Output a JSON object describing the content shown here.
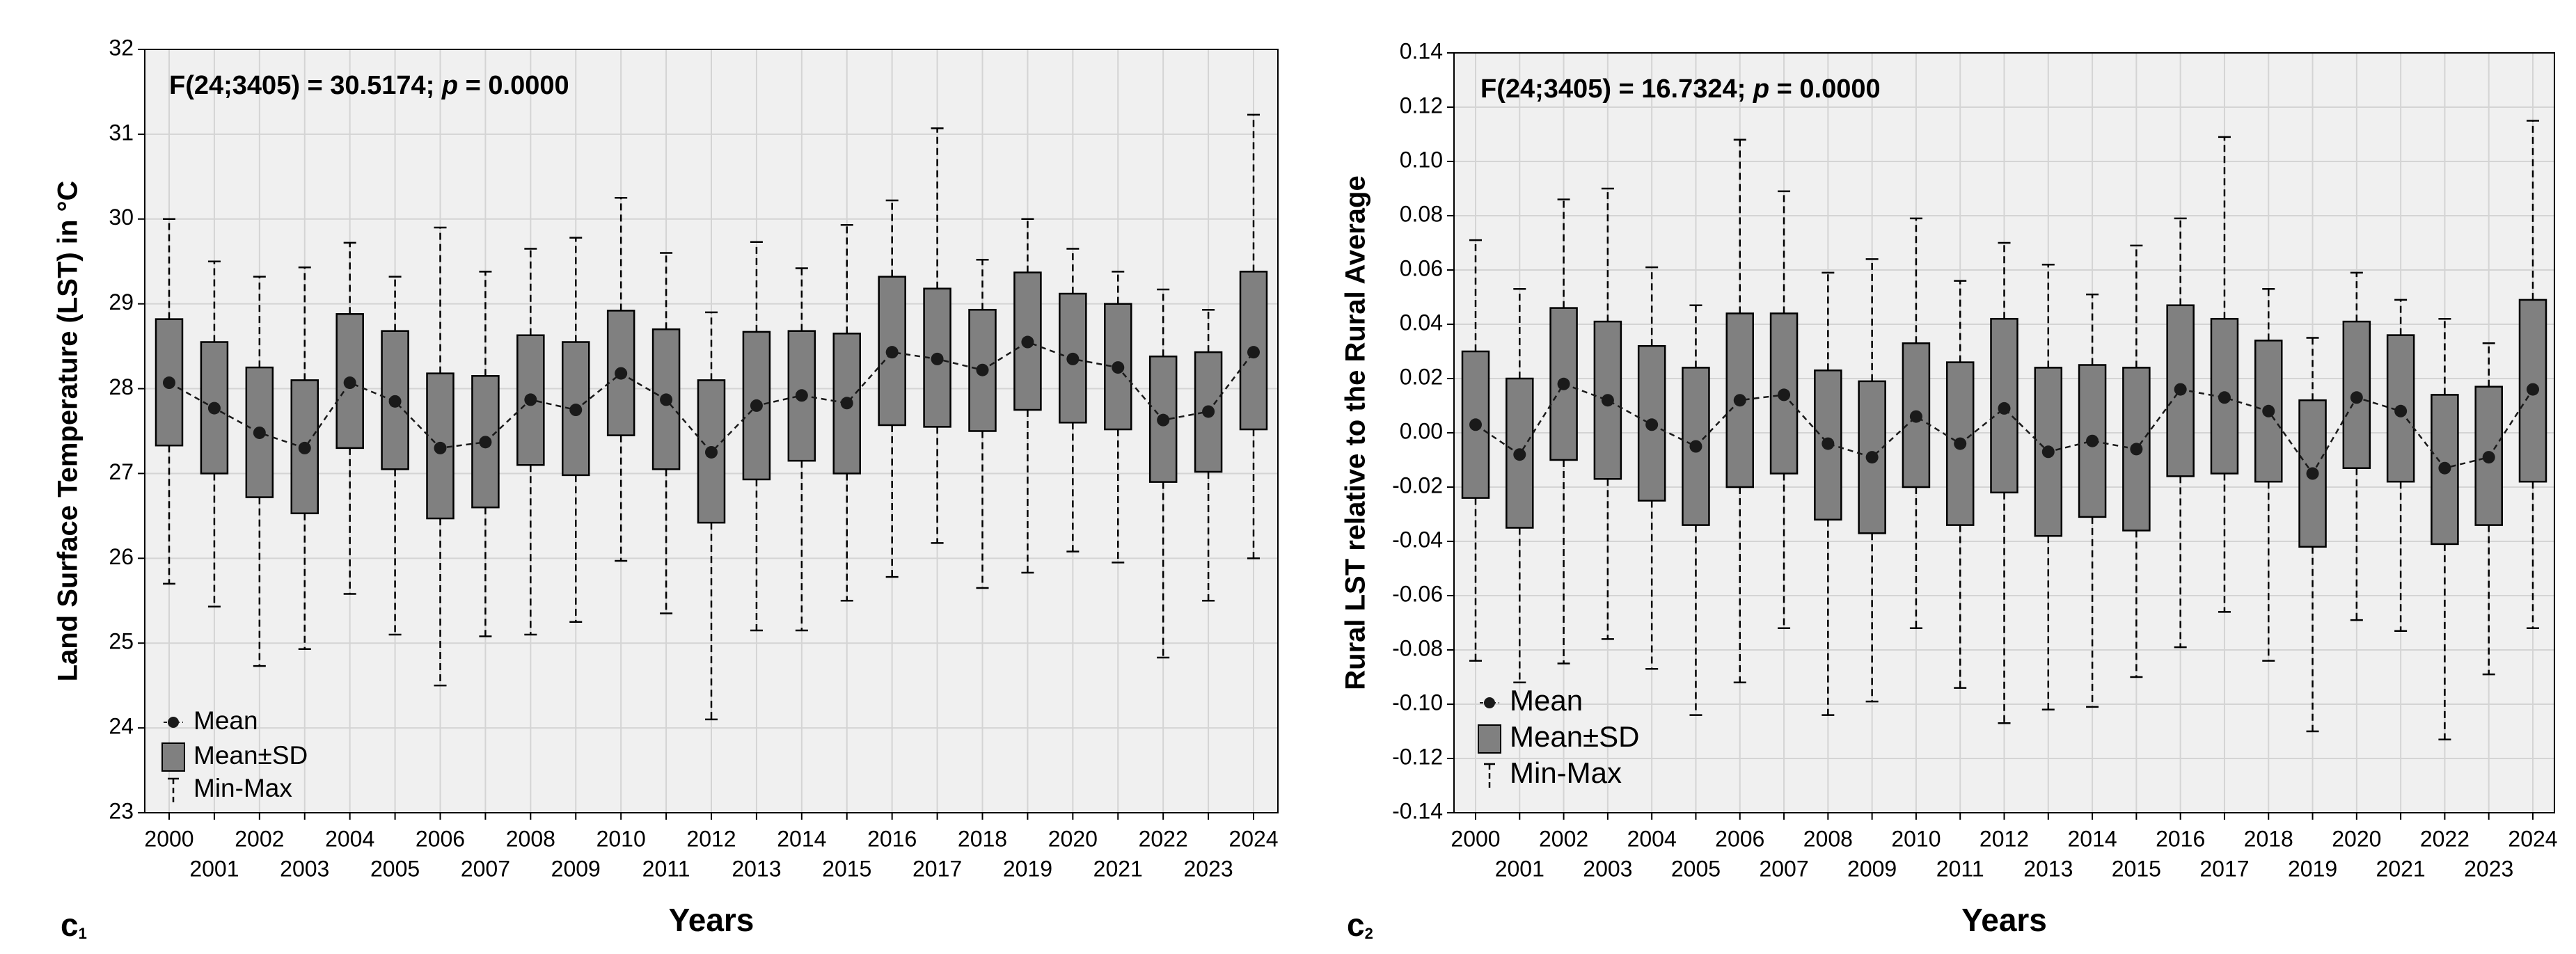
{
  "chart_data": [
    {
      "type": "box",
      "panel": {
        "letter": "c",
        "sub": "1"
      },
      "annotation": [
        "F(24;3405) = 30.5174; ",
        "p",
        " = 0.0000"
      ],
      "y_label": "Land Surface Temperature (LST) in °C",
      "x_label": "Years",
      "categories": [
        "2000",
        "2001",
        "2002",
        "2003",
        "2004",
        "2005",
        "2006",
        "2007",
        "2008",
        "2009",
        "2010",
        "2011",
        "2012",
        "2013",
        "2014",
        "2015",
        "2016",
        "2017",
        "2018",
        "2019",
        "2020",
        "2021",
        "2022",
        "2023",
        "2024"
      ],
      "series": [
        {
          "name": "Mean",
          "color": "#1a1a1a",
          "values": [
            28.07,
            27.77,
            27.48,
            27.3,
            28.07,
            27.85,
            27.3,
            27.37,
            27.87,
            27.75,
            28.18,
            27.87,
            27.25,
            27.8,
            27.92,
            27.83,
            28.43,
            28.35,
            28.22,
            28.55,
            28.35,
            28.25,
            27.63,
            27.73,
            28.43
          ]
        },
        {
          "name": "Mean±SD",
          "color": "#808080",
          "low": [
            27.33,
            27.0,
            26.72,
            26.53,
            27.3,
            27.05,
            26.47,
            26.6,
            27.1,
            26.98,
            27.45,
            27.05,
            26.42,
            26.93,
            27.15,
            27.0,
            27.57,
            27.55,
            27.5,
            27.75,
            27.6,
            27.52,
            26.9,
            27.02,
            27.52
          ],
          "high": [
            28.82,
            28.55,
            28.25,
            28.1,
            28.88,
            28.68,
            28.18,
            28.15,
            28.63,
            28.55,
            28.92,
            28.7,
            28.1,
            28.67,
            28.68,
            28.65,
            29.32,
            29.18,
            28.93,
            29.37,
            29.12,
            29.0,
            28.38,
            28.43,
            29.38
          ]
        },
        {
          "name": "Min-Max",
          "color": "#000000",
          "low": [
            25.7,
            25.43,
            24.73,
            24.93,
            25.58,
            25.1,
            24.5,
            25.08,
            25.1,
            25.25,
            25.97,
            25.35,
            24.1,
            25.15,
            25.15,
            25.5,
            25.78,
            26.18,
            25.65,
            25.83,
            26.08,
            25.95,
            24.83,
            25.5,
            26.0
          ],
          "high": [
            30.0,
            29.5,
            29.32,
            29.43,
            29.72,
            29.32,
            29.9,
            29.38,
            29.65,
            29.78,
            30.25,
            29.6,
            28.9,
            29.73,
            29.42,
            29.93,
            30.22,
            31.07,
            29.52,
            30.0,
            29.65,
            29.38,
            29.17,
            28.93,
            31.23
          ]
        }
      ],
      "ylim": [
        23,
        32
      ],
      "yticks": [
        23,
        24,
        25,
        26,
        27,
        28,
        29,
        30,
        31,
        32
      ],
      "grid": true
    },
    {
      "type": "box",
      "panel": {
        "letter": "c",
        "sub": "2"
      },
      "annotation": [
        "F(24;3405) = 16.7324; ",
        "p",
        " = 0.0000"
      ],
      "y_label": "Rural LST relative to the Rural Average",
      "x_label": "Years",
      "categories": [
        "2000",
        "2001",
        "2002",
        "2003",
        "2004",
        "2005",
        "2006",
        "2007",
        "2008",
        "2009",
        "2010",
        "2011",
        "2012",
        "2013",
        "2014",
        "2015",
        "2016",
        "2017",
        "2018",
        "2019",
        "2020",
        "2021",
        "2022",
        "2023",
        "2024"
      ],
      "series": [
        {
          "name": "Mean",
          "color": "#1a1a1a",
          "values": [
            0.003,
            -0.008,
            0.018,
            0.012,
            0.003,
            -0.005,
            0.012,
            0.014,
            -0.004,
            -0.009,
            0.006,
            -0.004,
            0.009,
            -0.007,
            -0.003,
            -0.006,
            0.016,
            0.013,
            0.008,
            -0.015,
            0.013,
            0.008,
            -0.013,
            -0.009,
            0.016
          ]
        },
        {
          "name": "Mean±SD",
          "color": "#808080",
          "low": [
            -0.024,
            -0.035,
            -0.01,
            -0.017,
            -0.025,
            -0.034,
            -0.02,
            -0.015,
            -0.032,
            -0.037,
            -0.02,
            -0.034,
            -0.022,
            -0.038,
            -0.031,
            -0.036,
            -0.016,
            -0.015,
            -0.018,
            -0.042,
            -0.013,
            -0.018,
            -0.041,
            -0.034,
            -0.018
          ],
          "high": [
            0.03,
            0.02,
            0.046,
            0.041,
            0.032,
            0.024,
            0.044,
            0.044,
            0.023,
            0.019,
            0.033,
            0.026,
            0.042,
            0.024,
            0.025,
            0.024,
            0.047,
            0.042,
            0.034,
            0.012,
            0.041,
            0.036,
            0.014,
            0.017,
            0.049
          ]
        },
        {
          "name": "Min-Max",
          "color": "#000000",
          "low": [
            -0.084,
            -0.092,
            -0.085,
            -0.076,
            -0.087,
            -0.104,
            -0.092,
            -0.072,
            -0.104,
            -0.099,
            -0.072,
            -0.094,
            -0.107,
            -0.102,
            -0.101,
            -0.09,
            -0.079,
            -0.066,
            -0.084,
            -0.11,
            -0.069,
            -0.073,
            -0.113,
            -0.089,
            -0.072
          ],
          "high": [
            0.071,
            0.053,
            0.086,
            0.09,
            0.061,
            0.047,
            0.108,
            0.089,
            0.059,
            0.064,
            0.079,
            0.056,
            0.07,
            0.062,
            0.051,
            0.069,
            0.079,
            0.109,
            0.053,
            0.035,
            0.059,
            0.049,
            0.042,
            0.033,
            0.115
          ]
        }
      ],
      "ylim": [
        -0.14,
        0.14
      ],
      "yticks": [
        {
          "value": -0.14,
          "label": "-0.14"
        },
        {
          "value": -0.12,
          "label": "-0.12"
        },
        {
          "value": -0.1,
          "label": "-0.10"
        },
        {
          "value": -0.08,
          "label": "-0.08"
        },
        {
          "value": -0.06,
          "label": "-0.06"
        },
        {
          "value": -0.04,
          "label": "-0.04"
        },
        {
          "value": -0.02,
          "label": "-0.02"
        },
        {
          "value": 0,
          "label": "0.00"
        },
        {
          "value": 0.02,
          "label": "0.02"
        },
        {
          "value": 0.04,
          "label": "0.04"
        },
        {
          "value": 0.06,
          "label": "0.06"
        },
        {
          "value": 0.08,
          "label": "0.08"
        },
        {
          "value": 0.1,
          "label": "0.10"
        },
        {
          "value": 0.12,
          "label": "0.12"
        },
        {
          "value": 0.14,
          "label": "0.14"
        }
      ],
      "grid": true
    }
  ]
}
